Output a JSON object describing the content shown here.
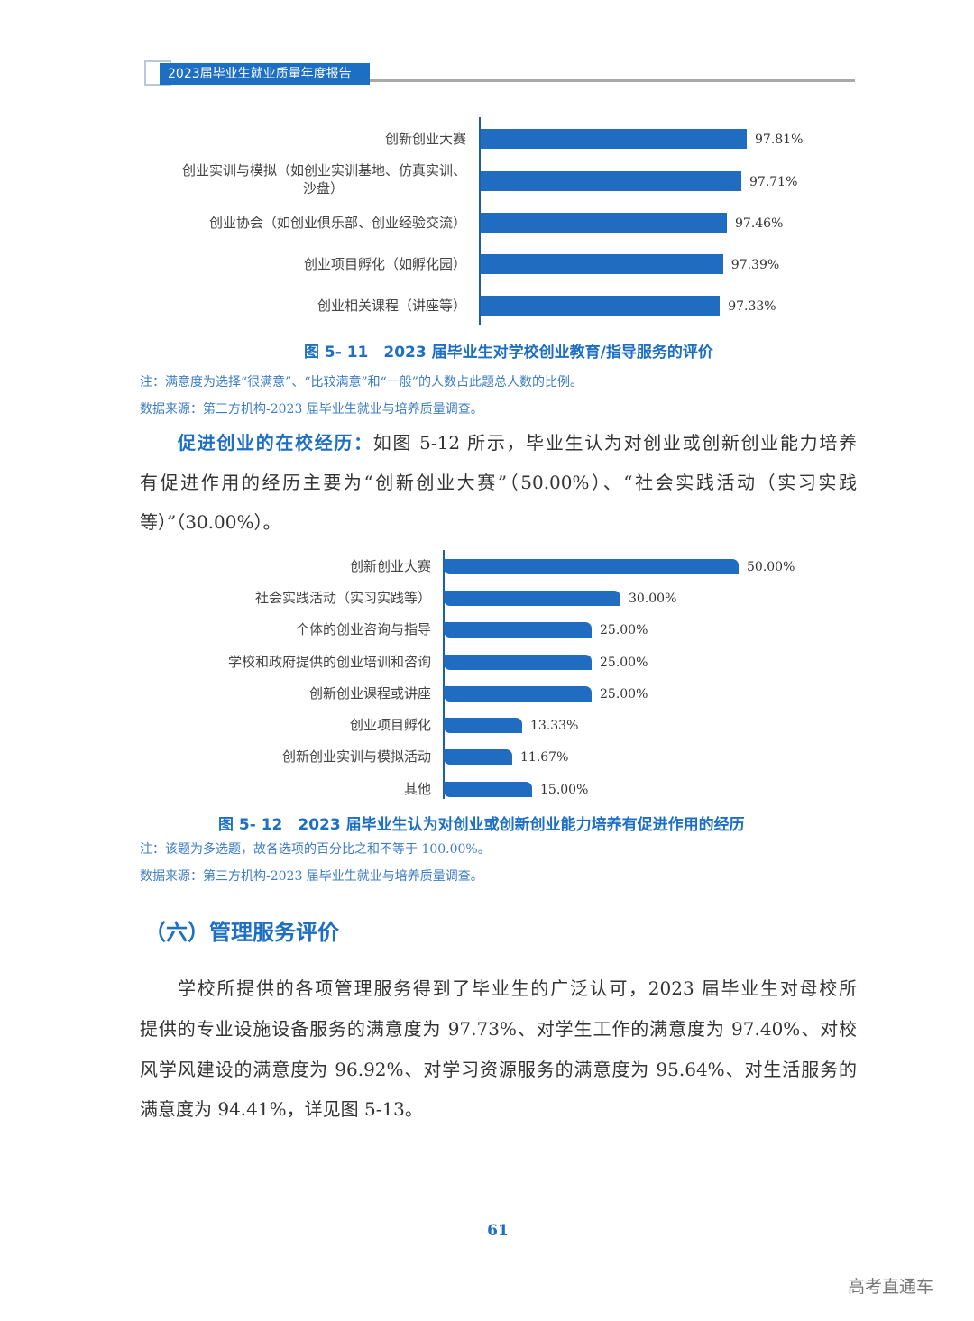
{
  "header": {
    "title": "2023届毕业生就业质量年度报告"
  },
  "figure1": {
    "caption": "图 5- 11　2023 届毕业生对学校创业教育/指导服务的评价",
    "note": "注：满意度为选择“很满意”、“比较满意”和“一般”的人数占此题总人数的比例。",
    "source": "数据来源：第三方机构-2023 届毕业生就业与培养质量调查。"
  },
  "para1": {
    "lead": "促进创业的在校经历：",
    "lines": [
      "如图 5-12 所示，毕业生认为对创业或创新创业能力培养",
      "有促进作用的经历主要为“创新创业大赛”（50.00%）、“社会实践活动（实习实践",
      "等）”（30.00%）。"
    ]
  },
  "figure2": {
    "caption": "图 5- 12　2023 届毕业生认为对创业或创新创业能力培养有促进作用的经历",
    "note": "注：该题为多选题，故各选项的百分比之和不等于 100.00%。",
    "source": "数据来源：第三方机构-2023 届毕业生就业与培养质量调查。"
  },
  "section": {
    "heading": "（六）管理服务评价"
  },
  "para2": {
    "lines": [
      "学校所提供的各项管理服务得到了毕业生的广泛认可，2023 届毕业生对母校所",
      "提供的专业设施设备服务的满意度为 97.73%、对学生工作的满意度为 97.40%、对校",
      "风学风建设的满意度为 96.92%、对学习资源服务的满意度为 95.64%、对生活服务的",
      "满意度为 94.41%，详见图 5-13。"
    ]
  },
  "page_number": "61",
  "watermark": "高考直通车",
  "chart_data": [
    {
      "type": "bar",
      "orientation": "horizontal",
      "categories": [
        "创新创业大赛",
        "创业实训与模拟（如创业实训基地、仿真实训、沙盘）",
        "创业协会（如创业俱乐部、创业经验交流）",
        "创业项目孵化（如孵化园）",
        "创业相关课程（讲座等）"
      ],
      "values": [
        97.81,
        97.71,
        97.46,
        97.39,
        97.33
      ],
      "data_labels": [
        "97.81%",
        "97.71%",
        "97.46%",
        "97.39%",
        "97.33%"
      ],
      "color": "#1f6cc0",
      "grid": false
    },
    {
      "type": "bar",
      "orientation": "horizontal",
      "categories": [
        "创新创业大赛",
        "社会实践活动（实习实践等）",
        "个体的创业咨询与指导",
        "学校和政府提供的创业培训和咨询",
        "创新创业课程或讲座",
        "创业项目孵化",
        "创新创业实训与模拟活动",
        "其他"
      ],
      "values": [
        50.0,
        30.0,
        25.0,
        25.0,
        25.0,
        13.33,
        11.67,
        15.0
      ],
      "data_labels": [
        "50.00%",
        "30.00%",
        "25.00%",
        "25.00%",
        "25.00%",
        "13.33%",
        "11.67%",
        "15.00%"
      ],
      "color": "#1f6cc0",
      "grid": false
    }
  ]
}
